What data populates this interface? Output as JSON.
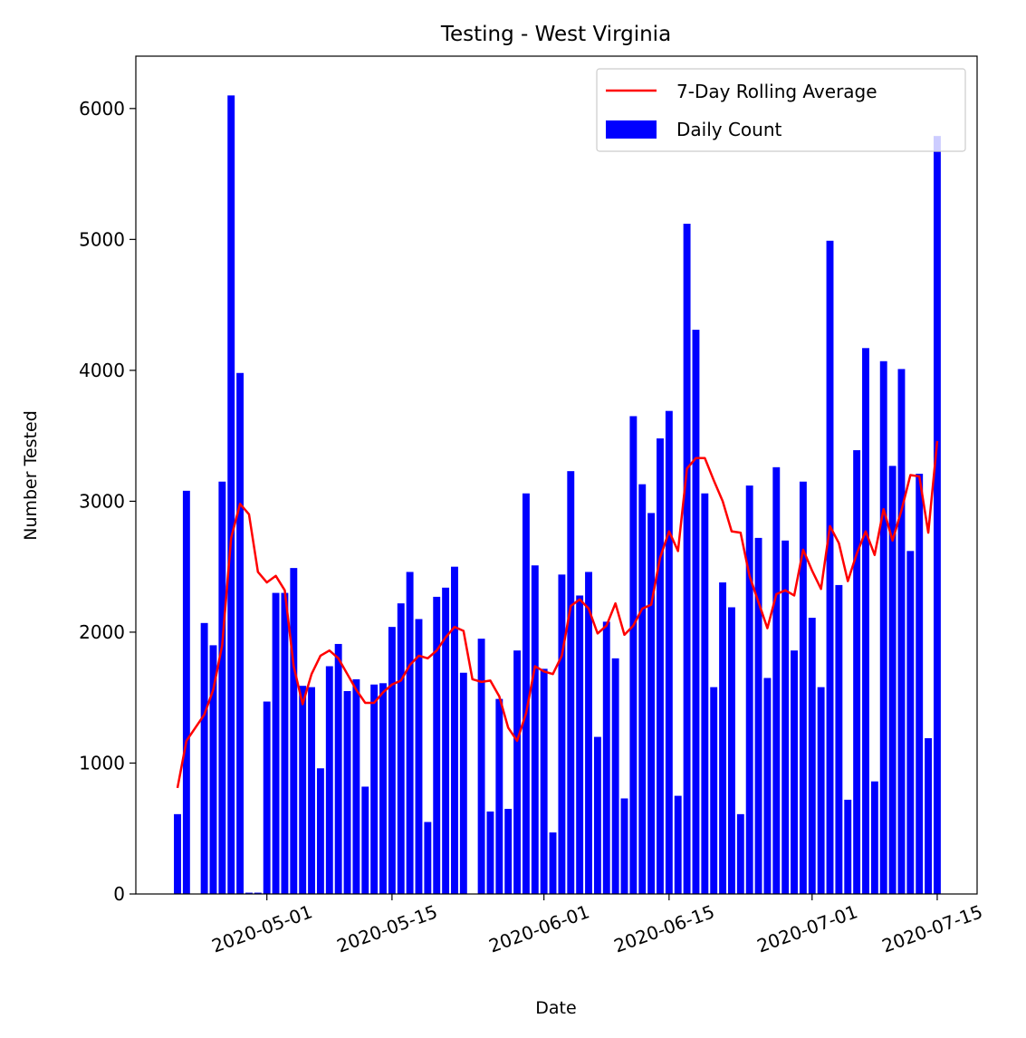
{
  "chart_data": {
    "type": "bar",
    "title": "Testing - West Virginia",
    "xlabel": "Date",
    "ylabel": "Number Tested",
    "ylim": [
      0,
      6400
    ],
    "yticks": [
      0,
      1000,
      2000,
      3000,
      4000,
      5000,
      6000
    ],
    "xticks": [
      "2020-05-01",
      "2020-05-15",
      "2020-06-01",
      "2020-06-15",
      "2020-07-01",
      "2020-07-15"
    ],
    "start_date": "2020-04-21",
    "legend_position": "top-right",
    "series": [
      {
        "name": "Daily Count",
        "kind": "bar",
        "color": "#0000ff",
        "values": [
          610,
          3080,
          0,
          2070,
          1900,
          3150,
          6100,
          3980,
          10,
          10,
          1470,
          2300,
          2300,
          2490,
          1590,
          1580,
          960,
          1740,
          1910,
          1550,
          1640,
          820,
          1600,
          1610,
          2040,
          2220,
          2460,
          2100,
          550,
          2270,
          2340,
          2500,
          1690,
          0,
          1950,
          630,
          1490,
          650,
          1860,
          3060,
          2510,
          1720,
          470,
          2440,
          3230,
          2280,
          2460,
          1200,
          2080,
          1800,
          730,
          3650,
          3130,
          2910,
          3480,
          3690,
          750,
          5120,
          4310,
          3060,
          1580,
          2380,
          2190,
          610,
          3120,
          2720,
          1650,
          3260,
          2700,
          1860,
          3150,
          2110,
          1580,
          4990,
          2360,
          720,
          3390,
          4170,
          860,
          4070,
          3270,
          4010,
          2620,
          3210,
          1190,
          5790
        ]
      },
      {
        "name": "7-Day Rolling Average",
        "kind": "line",
        "color": "#ff0000",
        "values": [
          810,
          1170,
          1270,
          1370,
          1560,
          1900,
          2720,
          2980,
          2900,
          2460,
          2380,
          2430,
          2320,
          1740,
          1450,
          1680,
          1820,
          1860,
          1800,
          1680,
          1560,
          1460,
          1460,
          1540,
          1600,
          1630,
          1750,
          1820,
          1800,
          1860,
          1960,
          2040,
          2010,
          1640,
          1620,
          1630,
          1510,
          1270,
          1170,
          1380,
          1740,
          1700,
          1680,
          1820,
          2200,
          2250,
          2180,
          1990,
          2050,
          2220,
          1980,
          2050,
          2180,
          2210,
          2570,
          2770,
          2620,
          3250,
          3330,
          3330,
          3160,
          3000,
          2770,
          2760,
          2430,
          2230,
          2030,
          2290,
          2320,
          2280,
          2630,
          2470,
          2330,
          2810,
          2680,
          2390,
          2600,
          2770,
          2590,
          2940,
          2700,
          2930,
          3200,
          3190,
          2760,
          3460
        ]
      }
    ]
  }
}
